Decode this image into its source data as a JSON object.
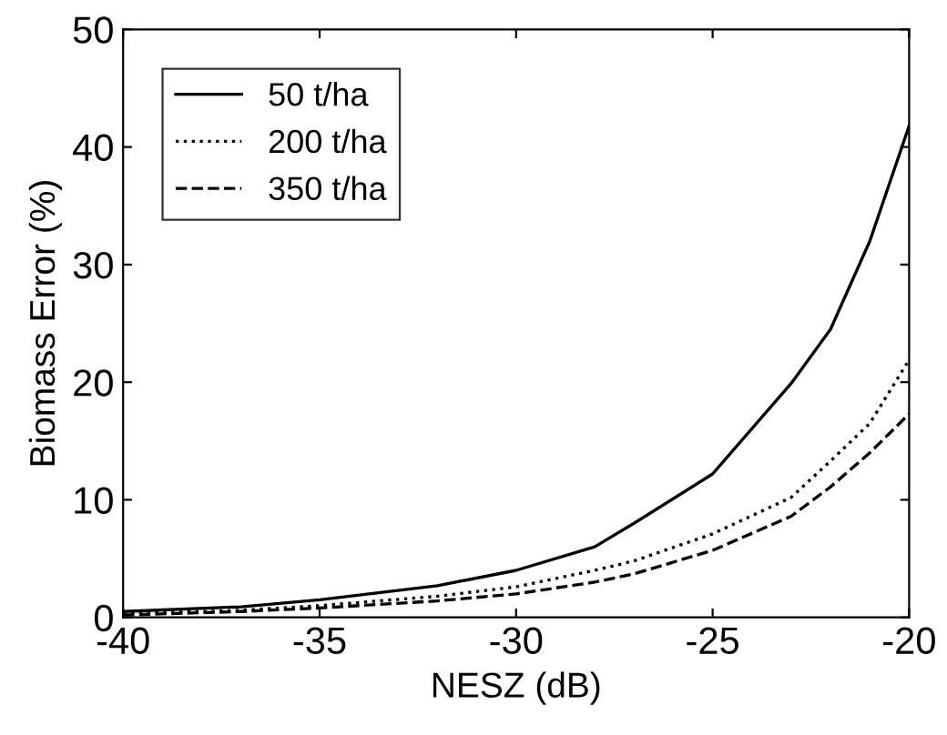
{
  "chart_data": {
    "type": "line",
    "xlabel": "NESZ (dB)",
    "ylabel": "Biomass Error (%)",
    "x": [
      -40,
      -37,
      -35,
      -32,
      -30,
      -28,
      -27,
      -25,
      -23,
      -22,
      -21,
      -20
    ],
    "series": [
      {
        "name": "50 t/ha",
        "color": "#000000",
        "line_style": "solid",
        "values": [
          0.5,
          0.9,
          1.5,
          2.7,
          4.0,
          6.0,
          8.0,
          12.2,
          19.9,
          24.5,
          32,
          41.8
        ]
      },
      {
        "name": "200 t/ha",
        "color": "#000000",
        "line_style": "dotted",
        "values": [
          0.3,
          0.6,
          1.0,
          1.8,
          2.6,
          4.0,
          4.8,
          7.1,
          10.2,
          13.3,
          16.5,
          21.9
        ]
      },
      {
        "name": "350 t/ha",
        "color": "#000000",
        "line_style": "dashed",
        "values": [
          0.2,
          0.5,
          0.8,
          1.4,
          2.0,
          3.0,
          3.7,
          5.7,
          8.6,
          11.1,
          14.0,
          17.3
        ]
      }
    ],
    "xlim": [
      -40,
      -20
    ],
    "xticks": [
      -40,
      -35,
      -30,
      -25,
      -20
    ],
    "ylim": [
      0,
      50
    ],
    "yticks": [
      0,
      10,
      20,
      30,
      40,
      50
    ],
    "grid": false,
    "legend": "top left",
    "marker": "none"
  }
}
